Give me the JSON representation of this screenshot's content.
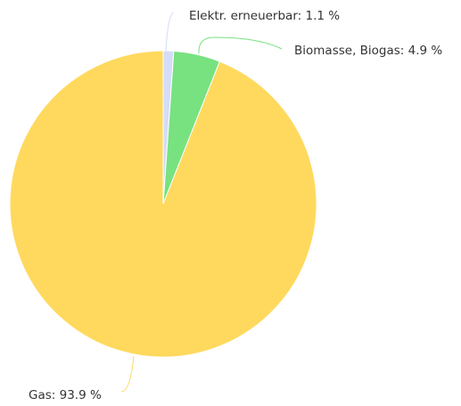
{
  "chart_data": {
    "type": "pie",
    "values": [
      1.1,
      4.9,
      93.9
    ],
    "value_labels": [
      "Elektr. erneuerbar: 1.1 %",
      "Biomasse, Biogas: 4.9 %",
      "Gas: 93.9 %"
    ],
    "colors": [
      "#d4dcf7",
      "#77e27f",
      "#ffd95e"
    ]
  }
}
